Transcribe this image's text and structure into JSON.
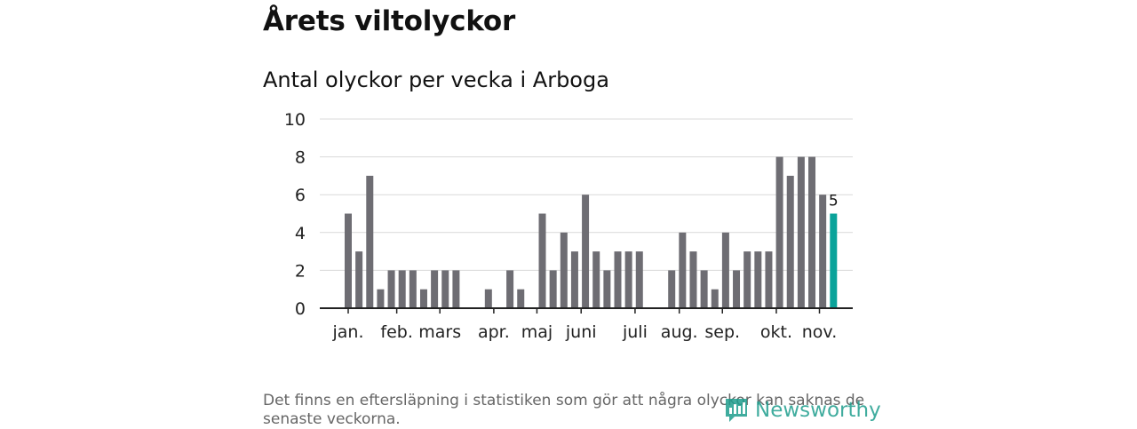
{
  "title": "Årets viltolyckor",
  "subtitle": "Antal olyckor per vecka i Arboga",
  "footnote": "Det finns en eftersläpning i statistiken som gör att några olyckor kan saknas de senaste veckorna.",
  "brand": "Newsworthy",
  "colors": {
    "bar": "#6e6d73",
    "highlight": "#0aa39a",
    "grid": "#d9d9d9",
    "axis": "#222222",
    "brand": "#1f9e8e"
  },
  "chart_data": {
    "type": "bar",
    "title": "Antal olyckor per vecka i Arboga",
    "xlabel": "",
    "ylabel": "",
    "ylim": [
      0,
      10
    ],
    "yticks": [
      "0",
      "2",
      "4",
      "6",
      "8",
      "10"
    ],
    "weeks": [
      1,
      2,
      3,
      4,
      5,
      6,
      7,
      8,
      9,
      10,
      11,
      12,
      13,
      14,
      15,
      16,
      17,
      18,
      19,
      20,
      21,
      22,
      23,
      24,
      25,
      26,
      27,
      28,
      29,
      30,
      31,
      32,
      33,
      34,
      35,
      36,
      37,
      38,
      39,
      40,
      41,
      42,
      43,
      44,
      45,
      46
    ],
    "values": [
      5,
      3,
      7,
      1,
      2,
      2,
      2,
      1,
      2,
      2,
      2,
      0,
      0,
      1,
      0,
      2,
      1,
      0,
      5,
      2,
      4,
      3,
      6,
      3,
      2,
      3,
      3,
      3,
      0,
      0,
      2,
      4,
      3,
      2,
      1,
      4,
      2,
      3,
      3,
      3,
      8,
      7,
      8,
      8,
      6,
      5
    ],
    "month_labels": [
      {
        "label": "jan.",
        "week": 1
      },
      {
        "label": "feb.",
        "week": 5.5
      },
      {
        "label": "mars",
        "week": 9.5
      },
      {
        "label": "apr.",
        "week": 14.5
      },
      {
        "label": "maj",
        "week": 18.5
      },
      {
        "label": "juni",
        "week": 22.6
      },
      {
        "label": "juli",
        "week": 27.6
      },
      {
        "label": "aug.",
        "week": 31.7
      },
      {
        "label": "sep.",
        "week": 35.7
      },
      {
        "label": "okt.",
        "week": 40.7
      },
      {
        "label": "nov.",
        "week": 44.7
      }
    ],
    "highlight_index": 45,
    "highlight_label": "5"
  }
}
